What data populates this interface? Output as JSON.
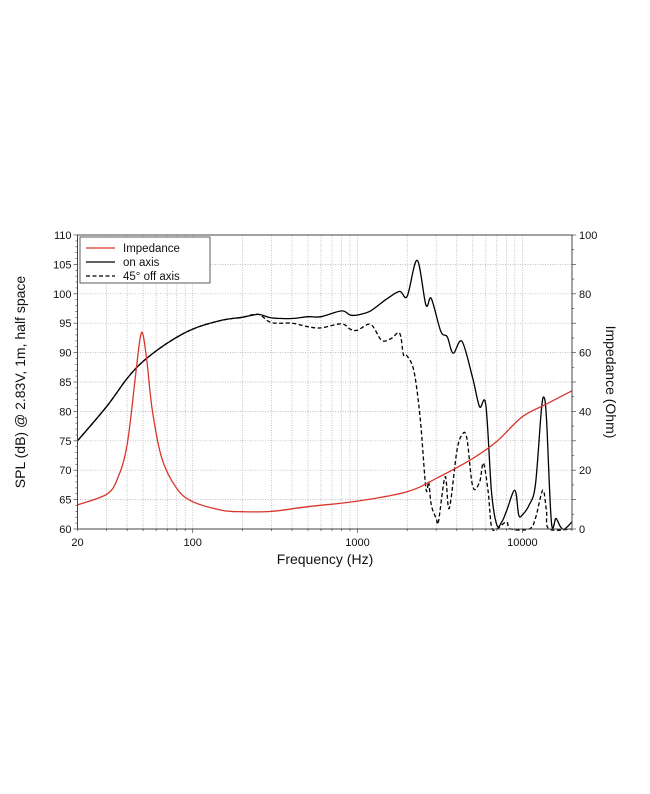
{
  "chart_data": {
    "type": "line",
    "xlabel": "Frequency (Hz)",
    "ylabel": "SPL (dB) @ 2.83V, 1m, half space",
    "y2label": "Impedance (Ohm)",
    "xscale": "log",
    "xlim": [
      20,
      20000
    ],
    "ylim": [
      60,
      110
    ],
    "y2lim": [
      0,
      100
    ],
    "xticks": [
      20,
      100,
      1000,
      10000
    ],
    "yticks": [
      60,
      65,
      70,
      75,
      80,
      85,
      90,
      95,
      100,
      105,
      110
    ],
    "y2ticks": [
      0,
      20,
      40,
      60,
      80,
      100
    ],
    "grid": true,
    "legend_position": "top-left",
    "series": [
      {
        "name": "Impedance",
        "axis": "right",
        "color": "#d9352b",
        "style": "solid",
        "x": [
          20,
          30,
          35,
          40,
          45,
          48,
          50,
          53,
          57,
          65,
          80,
          100,
          150,
          200,
          300,
          500,
          1000,
          2000,
          3000,
          5000,
          7000,
          10000,
          14000,
          20000
        ],
        "y": [
          8.2,
          11.8,
          17.2,
          28.6,
          52.4,
          65,
          66,
          56,
          40,
          24,
          13.8,
          9.3,
          6.4,
          5.9,
          6,
          7.6,
          9.5,
          12.7,
          17.2,
          24,
          29.8,
          38.2,
          42.5,
          47
        ]
      },
      {
        "name": "on axis",
        "axis": "left",
        "color": "#000000",
        "style": "solid",
        "x": [
          20,
          30,
          40,
          50,
          70,
          100,
          150,
          200,
          250,
          300,
          400,
          500,
          600,
          800,
          900,
          1000,
          1200,
          1500,
          1800,
          2000,
          2300,
          2600,
          2800,
          3200,
          3500,
          3800,
          4300,
          5000,
          5500,
          6000,
          6500,
          7000,
          7500,
          8000,
          9000,
          9500,
          10000,
          11000,
          12000,
          13000,
          13500,
          14000,
          15000,
          16000,
          17000,
          18000,
          20000
        ],
        "y": [
          75,
          80.8,
          85.6,
          88.5,
          91.6,
          94,
          95.5,
          96,
          96.5,
          95.9,
          95.8,
          96.1,
          96.1,
          97.1,
          96.4,
          96.4,
          97.1,
          99.1,
          100.4,
          99.6,
          105.7,
          98.1,
          99.2,
          93.6,
          92.7,
          89.9,
          91.9,
          85.6,
          80.8,
          81.1,
          66.3,
          60.7,
          61.2,
          63,
          66.6,
          62.4,
          62.4,
          64.1,
          67.5,
          79.9,
          82.4,
          78.8,
          61.2,
          61.8,
          60.4,
          60,
          61.2
        ]
      },
      {
        "name": "45° off axis",
        "axis": "left",
        "color": "#000000",
        "style": "dashed",
        "x": [
          20,
          30,
          40,
          50,
          70,
          100,
          150,
          200,
          250,
          300,
          400,
          500,
          600,
          800,
          900,
          1000,
          1200,
          1400,
          1600,
          1800,
          1900,
          2000,
          2200,
          2400,
          2600,
          2700,
          2800,
          3000,
          3100,
          3400,
          3600,
          4000,
          4300,
          4600,
          5000,
          5500,
          5800,
          6200,
          6500,
          7000,
          8000,
          8500,
          11000,
          12000,
          13300,
          14000,
          14500,
          20000
        ],
        "y": [
          75,
          80.8,
          85.6,
          88.5,
          91.6,
          94,
          95.5,
          96,
          96.5,
          95.1,
          95,
          94.4,
          94.2,
          94.9,
          94,
          93.8,
          94.8,
          92.1,
          92.4,
          93.3,
          89.6,
          89.4,
          86.8,
          78.8,
          66.9,
          68,
          64.1,
          61.8,
          61.3,
          68.9,
          63.5,
          73.2,
          76,
          75.5,
          67.2,
          68,
          71.2,
          66.3,
          60.4,
          60,
          61.2,
          60,
          60,
          61.8,
          66.6,
          63,
          60,
          60
        ]
      }
    ]
  }
}
